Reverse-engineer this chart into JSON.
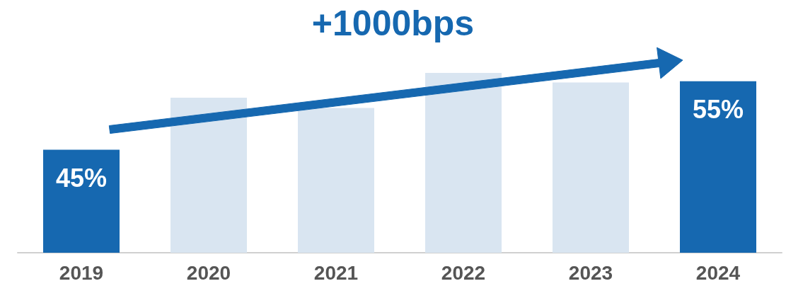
{
  "chart_data": {
    "type": "bar",
    "categories": [
      "2019",
      "2020",
      "2021",
      "2022",
      "2023",
      "2024"
    ],
    "values": [
      45,
      52.6,
      51.1,
      56.2,
      54.8,
      55
    ],
    "colors": [
      "#1668b0",
      "#d9e5f1",
      "#d9e5f1",
      "#d9e5f1",
      "#d9e5f1",
      "#1668b0"
    ],
    "value_labels": [
      "45%",
      null,
      null,
      null,
      null,
      "55%"
    ],
    "ylim": [
      30,
      56.2
    ],
    "annotations": [
      "+1000bps"
    ]
  }
}
